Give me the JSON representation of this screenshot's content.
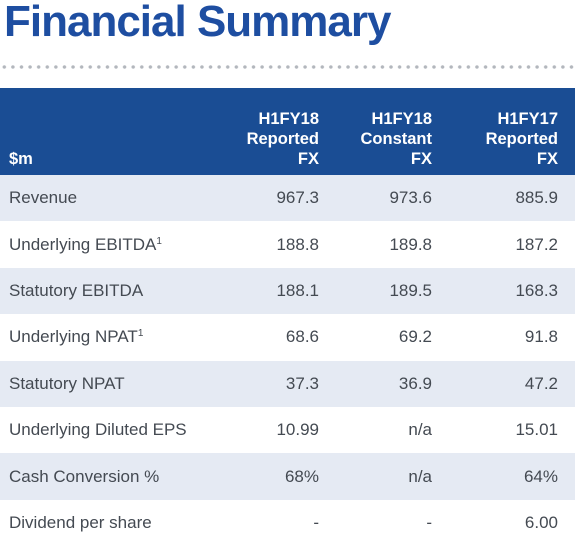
{
  "title": "Financial Summary",
  "table": {
    "unit_label": "$m",
    "columns": [
      {
        "line1": "H1FY18",
        "line2": "Reported",
        "line3": "FX"
      },
      {
        "line1": "H1FY18",
        "line2": "Constant",
        "line3": "FX"
      },
      {
        "line1": "H1FY17",
        "line2": "Reported",
        "line3": "FX"
      }
    ],
    "rows": [
      {
        "label": "Revenue",
        "note": "",
        "values": [
          "967.3",
          "973.6",
          "885.9"
        ]
      },
      {
        "label": "Underlying EBITDA",
        "note": "1",
        "values": [
          "188.8",
          "189.8",
          "187.2"
        ]
      },
      {
        "label": "Statutory EBITDA",
        "note": "",
        "values": [
          "188.1",
          "189.5",
          "168.3"
        ]
      },
      {
        "label": "Underlying NPAT",
        "note": "1",
        "values": [
          "68.6",
          "69.2",
          "91.8"
        ]
      },
      {
        "label": "Statutory NPAT",
        "note": "",
        "values": [
          "37.3",
          "36.9",
          "47.2"
        ]
      },
      {
        "label": "Underlying Diluted EPS",
        "note": "",
        "values": [
          "10.99",
          "n/a",
          "15.01"
        ]
      },
      {
        "label": "Cash Conversion %",
        "note": "",
        "values": [
          "68%",
          "n/a",
          "64%"
        ]
      },
      {
        "label": "Dividend per share",
        "note": "",
        "values": [
          "-",
          "-",
          "6.00"
        ]
      }
    ]
  },
  "colors": {
    "title": "#1e4ea1",
    "header_background": "#1a4d94",
    "row_shade": "#e5eaf3",
    "body_text": "#444a52"
  }
}
